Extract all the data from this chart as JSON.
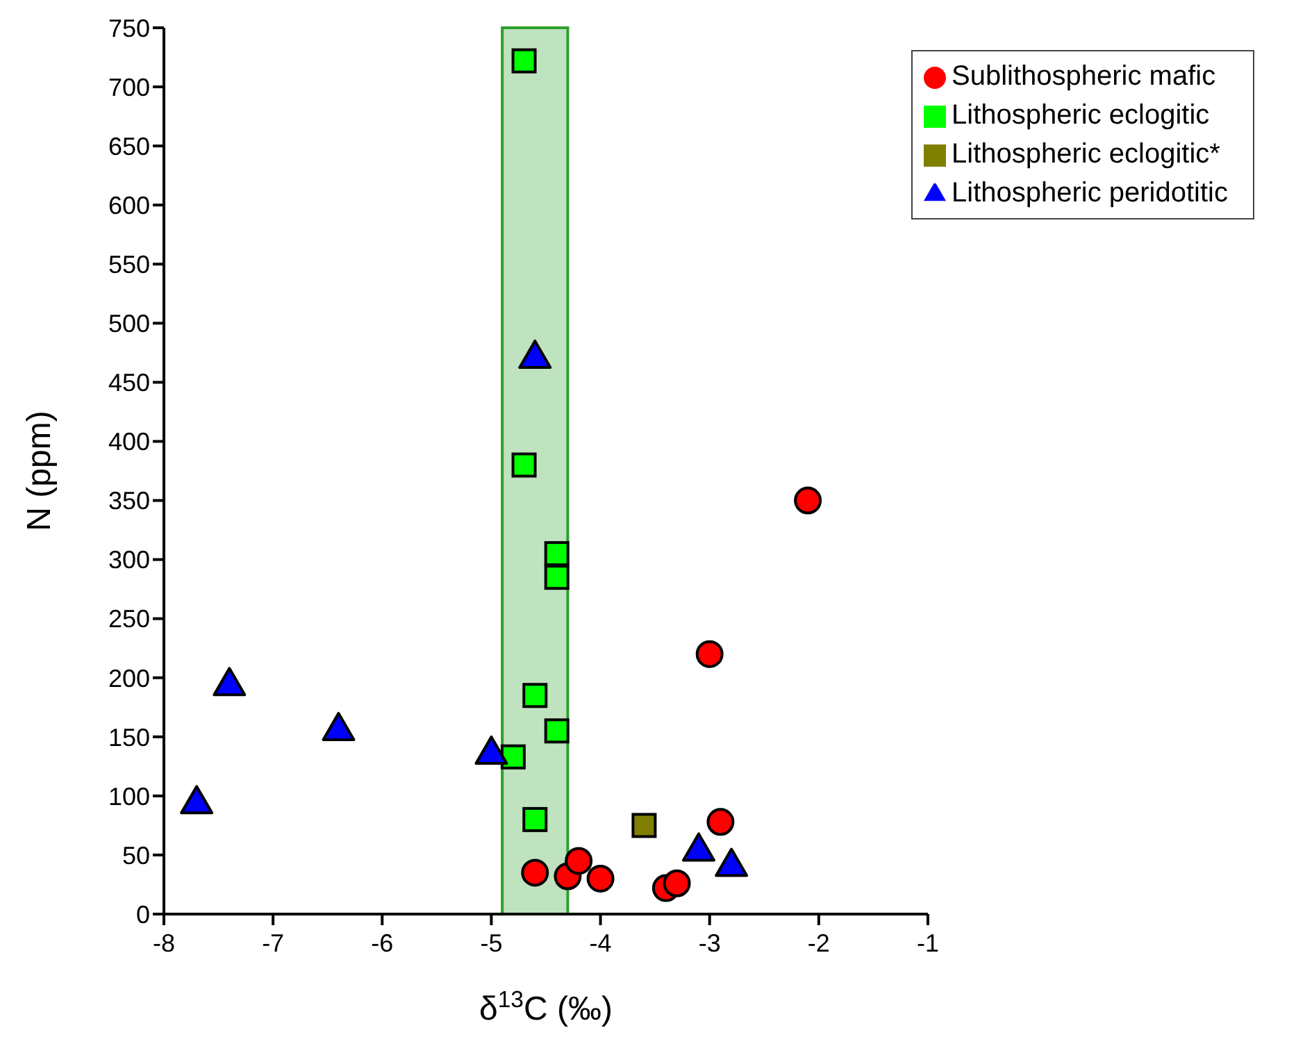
{
  "chart_data": {
    "type": "scatter",
    "xlabel": "δ$^{13}$C (‰)",
    "ylabel": "N (ppm)",
    "xlim": [
      -8,
      -1
    ],
    "xticks": [
      -8,
      -7,
      -6,
      -5,
      -4,
      -3,
      -2,
      -1
    ],
    "ylim": [
      0,
      750
    ],
    "yticks": [
      0,
      50,
      100,
      150,
      200,
      250,
      300,
      350,
      400,
      450,
      500,
      550,
      600,
      650,
      700,
      750
    ],
    "legend": "top right",
    "bands": [
      {
        "axis": "x",
        "from": -4.9,
        "to": -4.3,
        "color": "#2ca02c"
      }
    ],
    "series": [
      {
        "name": "Sublithospheric mafic",
        "color": "#ff0000",
        "marker": "circle",
        "x": [
          -4.6,
          -4.3,
          -4.2,
          -4.0,
          -3.4,
          -3.3,
          -2.9,
          -3.0,
          -2.1
        ],
        "values": [
          35,
          32,
          45,
          30,
          22,
          26,
          78,
          220,
          350
        ]
      },
      {
        "name": "Lithospheric eclogitic",
        "color": "#00ff00",
        "marker": "square",
        "x": [
          -4.7,
          -4.7,
          -4.4,
          -4.4,
          -4.6,
          -4.4,
          -4.8,
          -4.6
        ],
        "values": [
          722,
          380,
          305,
          285,
          185,
          155,
          133,
          80
        ]
      },
      {
        "name": "Lithospheric eclogitic*",
        "color": "#808000",
        "marker": "square",
        "x": [
          -3.6
        ],
        "values": [
          75
        ]
      },
      {
        "name": "Lithospheric peridotitic",
        "color": "#0000ff",
        "marker": "triangle",
        "x": [
          -7.7,
          -7.4,
          -6.4,
          -5.0,
          -4.6,
          -3.1,
          -2.8
        ],
        "values": [
          95,
          195,
          157,
          137,
          472,
          55,
          42
        ]
      }
    ]
  }
}
